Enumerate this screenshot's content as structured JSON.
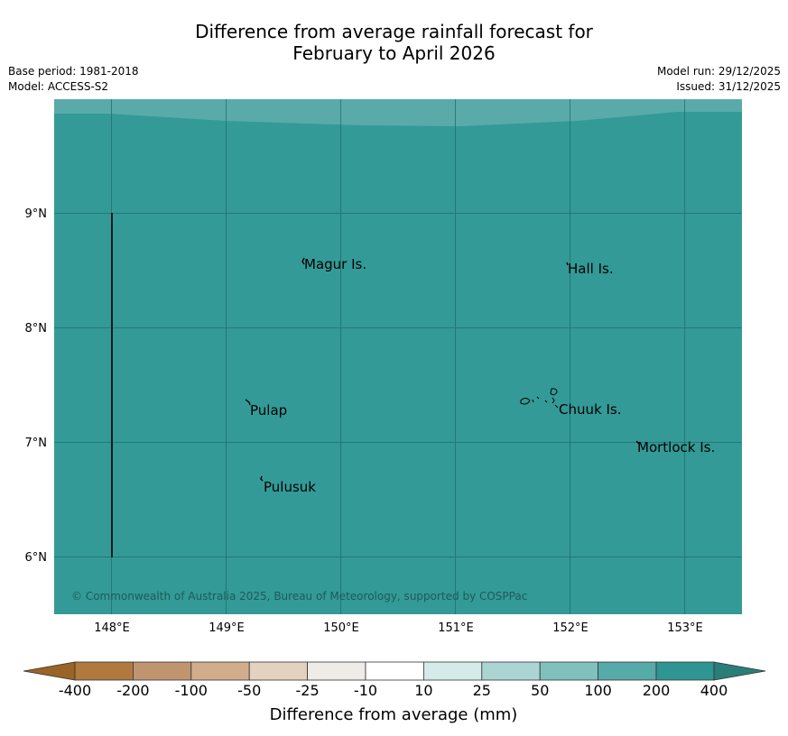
{
  "title": {
    "line1": "Difference from average rainfall forecast for",
    "line2": "February to April 2026"
  },
  "meta": {
    "base_period": "Base period: 1981-2018",
    "model": "Model: ACCESS-S2",
    "model_run": "Model run: 29/12/2025",
    "issued": "Issued: 31/12/2025"
  },
  "map": {
    "lat_labels": [
      "9°N",
      "8°N",
      "7°N",
      "6°N"
    ],
    "lon_labels": [
      "148°E",
      "149°E",
      "150°E",
      "151°E",
      "152°E",
      "153°E"
    ],
    "places": [
      "Magur Is.",
      "Hall Is.",
      "Pulap",
      "Chuuk Is.",
      "Mortlock Is.",
      "Pulusuk"
    ],
    "copyright": "© Commonwealth of Australia 2025, Bureau of Meteorology, supported by COSPPac",
    "colors": {
      "main": "#339a97",
      "top_band": "#5aaaaa",
      "grid": "#1f6d6b"
    }
  },
  "colorbar": {
    "title": "Difference from average (mm)",
    "tick_labels": [
      "-400",
      "-200",
      "-100",
      "-50",
      "-25",
      "-10",
      "10",
      "25",
      "50",
      "100",
      "200",
      "400"
    ],
    "colors": [
      "#b07a3e",
      "#c19470",
      "#d2ad8c",
      "#e3d2c0",
      "#efece7",
      "#ffffff",
      "#d5ebe9",
      "#abd5d3",
      "#80c0bd",
      "#56aaa8",
      "#2f9592"
    ],
    "under_color": "#9a6426",
    "over_color": "#2a7e7a"
  }
}
